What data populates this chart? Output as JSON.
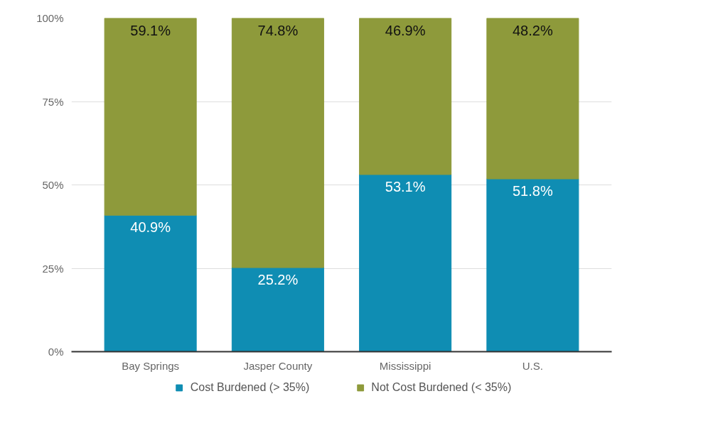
{
  "chart_data": {
    "type": "bar",
    "stacked": true,
    "categories": [
      "Bay Springs",
      "Jasper County",
      "Mississippi",
      "U.S."
    ],
    "series": [
      {
        "name": "Cost Burdened (> 35%)",
        "color": "#0f8db3",
        "values": [
          40.9,
          25.2,
          53.1,
          51.8
        ],
        "value_labels": [
          "40.9%",
          "25.2%",
          "53.1%",
          "51.8%"
        ]
      },
      {
        "name": "Not Cost Burdened (< 35%)",
        "color": "#8e9a3b",
        "values": [
          59.1,
          74.8,
          46.9,
          48.2
        ],
        "value_labels": [
          "59.1%",
          "74.8%",
          "46.9%",
          "48.2%"
        ]
      }
    ],
    "ylim": [
      0,
      100
    ],
    "yticks": [
      {
        "value": 0,
        "label": "0%"
      },
      {
        "value": 25,
        "label": "25%"
      },
      {
        "value": 50,
        "label": "50%"
      },
      {
        "value": 75,
        "label": "75%"
      },
      {
        "value": 100,
        "label": "100%"
      }
    ],
    "grid": "y",
    "legend": "bottom"
  }
}
